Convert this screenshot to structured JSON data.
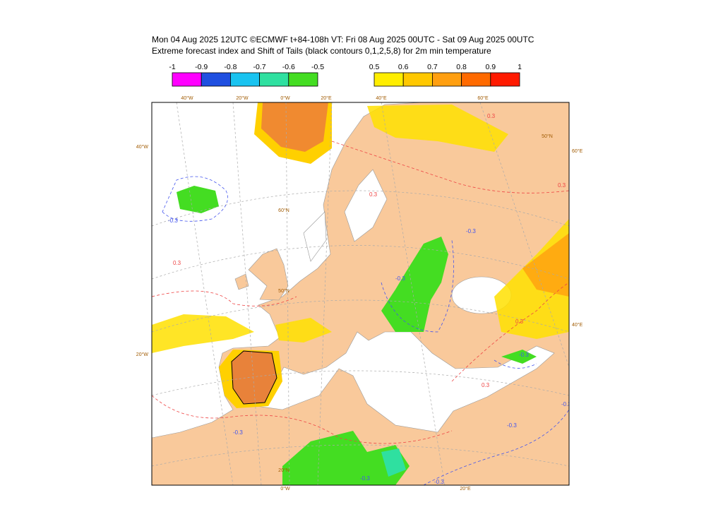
{
  "header": {
    "title_line1": "Mon 04 Aug 2025 12UTC ©ECMWF t+84-108h  VT: Fri 08 Aug 2025 00UTC - Sat 09 Aug 2025 00UTC",
    "title_line2": "Extreme forecast index and Shift of Tails (black contours 0,1,2,5,8) for 2m min temperature"
  },
  "legend_negative": {
    "labels": [
      "-1",
      "-0.9",
      "-0.8",
      "-0.7",
      "-0.6",
      "-0.5"
    ],
    "colors": [
      "#ff00ff",
      "#1f4fe0",
      "#19c3f0",
      "#2fe0a0",
      "#44dd22"
    ]
  },
  "legend_positive": {
    "labels": [
      "0.5",
      "0.6",
      "0.7",
      "0.8",
      "0.9",
      "1"
    ],
    "colors": [
      "#ffee00",
      "#ffc800",
      "#ff9f10",
      "#ff6a00",
      "#ff1a00"
    ]
  },
  "map": {
    "graticule_labels": [
      "40°W",
      "20°W",
      "0°W",
      "20°E",
      "40°E",
      "60°E",
      "40°W",
      "20°W",
      "60°E",
      "40°E",
      "0°W",
      "20°E",
      "60°N",
      "50°N",
      "20°N",
      "50°N"
    ],
    "contour_labels": [
      "-0.3",
      "-0.3",
      "-0.3",
      "0.3",
      "0.3",
      "0.3",
      "-0.3",
      "-0.3",
      "0.3",
      "-0.3",
      "0.3",
      "-0.3",
      "-0.3",
      "0.3",
      "-0.3"
    ]
  }
}
